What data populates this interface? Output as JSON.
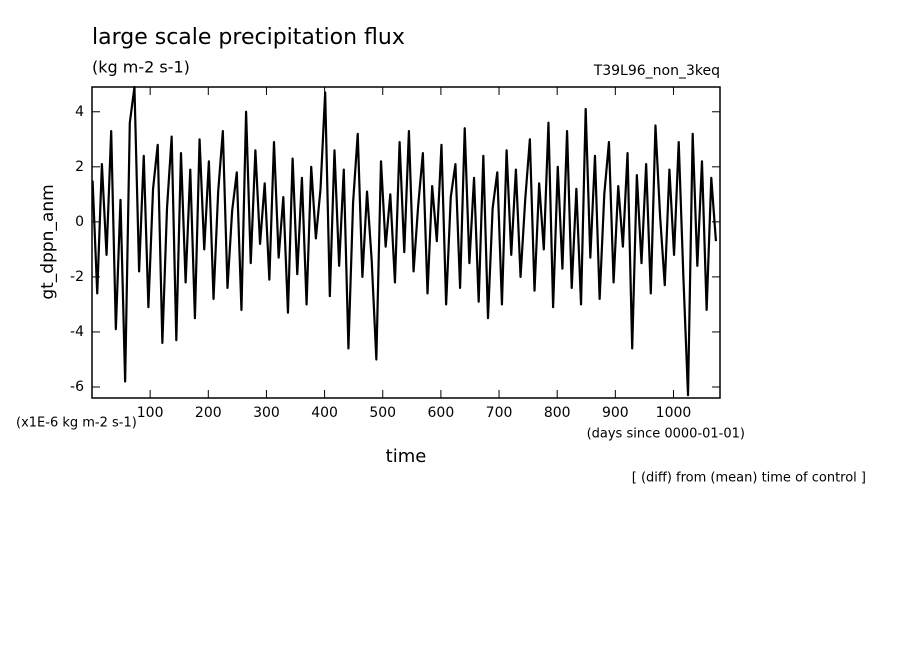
{
  "chart_data": {
    "type": "line",
    "title": "large scale precipitation flux",
    "subtitle": "(kg m-2 s-1)",
    "run_label": "T39L96_non_3keq",
    "ylabel": "gt_dppn_anm",
    "y_unit_label": "(x1E-6 kg m-2 s-1)",
    "xlabel": "time",
    "x_unit_label": "(days since 0000-01-01)",
    "footnote": "[ (diff) from (mean) time of control ]",
    "color": "#000000",
    "xlim": [
      0,
      1080
    ],
    "ylim": [
      -6.4,
      4.9
    ],
    "xticks": [
      100,
      200,
      300,
      400,
      500,
      600,
      700,
      800,
      900,
      1000
    ],
    "yticks": [
      -6,
      -4,
      -2,
      0,
      2,
      4
    ],
    "x": [
      1,
      9,
      17,
      25,
      33,
      41,
      49,
      57,
      65,
      73,
      81,
      89,
      97,
      105,
      113,
      121,
      129,
      137,
      145,
      153,
      161,
      169,
      177,
      185,
      193,
      201,
      209,
      217,
      225,
      233,
      241,
      249,
      257,
      265,
      273,
      281,
      289,
      297,
      305,
      313,
      321,
      329,
      337,
      345,
      353,
      361,
      369,
      377,
      385,
      393,
      401,
      409,
      417,
      425,
      433,
      441,
      449,
      457,
      465,
      473,
      481,
      489,
      497,
      505,
      513,
      521,
      529,
      537,
      545,
      553,
      561,
      569,
      577,
      585,
      593,
      601,
      609,
      617,
      625,
      633,
      641,
      649,
      657,
      665,
      673,
      681,
      689,
      697,
      705,
      713,
      721,
      729,
      737,
      745,
      753,
      761,
      769,
      777,
      785,
      793,
      801,
      809,
      817,
      825,
      833,
      841,
      849,
      857,
      865,
      873,
      881,
      889,
      897,
      905,
      913,
      921,
      929,
      937,
      945,
      953,
      961,
      969,
      977,
      985,
      993,
      1001,
      1009,
      1017,
      1025,
      1033,
      1041,
      1049,
      1057,
      1065,
      1073
    ],
    "values": [
      1.5,
      -2.6,
      2.1,
      -1.2,
      3.3,
      -3.9,
      0.8,
      -5.8,
      3.6,
      4.9,
      -1.8,
      2.4,
      -3.1,
      1.2,
      2.8,
      -4.4,
      0.5,
      3.1,
      -4.3,
      2.5,
      -2.2,
      1.9,
      -3.5,
      3.0,
      -1.0,
      2.2,
      -2.8,
      1.1,
      3.3,
      -2.4,
      0.4,
      1.8,
      -3.2,
      4.0,
      -1.5,
      2.6,
      -0.8,
      1.4,
      -2.1,
      2.9,
      -1.3,
      0.9,
      -3.3,
      2.3,
      -1.9,
      1.6,
      -3.0,
      2.0,
      -0.6,
      1.2,
      4.7,
      -2.7,
      2.6,
      -1.6,
      1.9,
      -4.6,
      0.7,
      3.2,
      -2.0,
      1.1,
      -1.4,
      -5.0,
      2.2,
      -0.9,
      1.0,
      -2.2,
      2.9,
      -1.1,
      3.3,
      -1.8,
      0.6,
      2.5,
      -2.6,
      1.3,
      -0.7,
      2.8,
      -3.0,
      0.9,
      2.1,
      -2.4,
      3.4,
      -1.5,
      1.6,
      -2.9,
      2.4,
      -3.5,
      0.5,
      1.8,
      -3.0,
      2.6,
      -1.2,
      1.9,
      -2.0,
      0.8,
      3.0,
      -2.5,
      1.4,
      -1.0,
      3.6,
      -3.1,
      2.0,
      -1.7,
      3.3,
      -2.4,
      1.2,
      -3.0,
      4.1,
      -1.3,
      2.4,
      -2.8,
      1.0,
      2.9,
      -2.2,
      1.3,
      -0.9,
      2.5,
      -4.6,
      1.7,
      -1.5,
      2.1,
      -2.6,
      3.5,
      0.2,
      -2.3,
      1.9,
      -1.2,
      2.9,
      -2.0,
      -6.3,
      3.2,
      -1.6,
      2.2,
      -3.2,
      1.6,
      -0.7
    ]
  }
}
